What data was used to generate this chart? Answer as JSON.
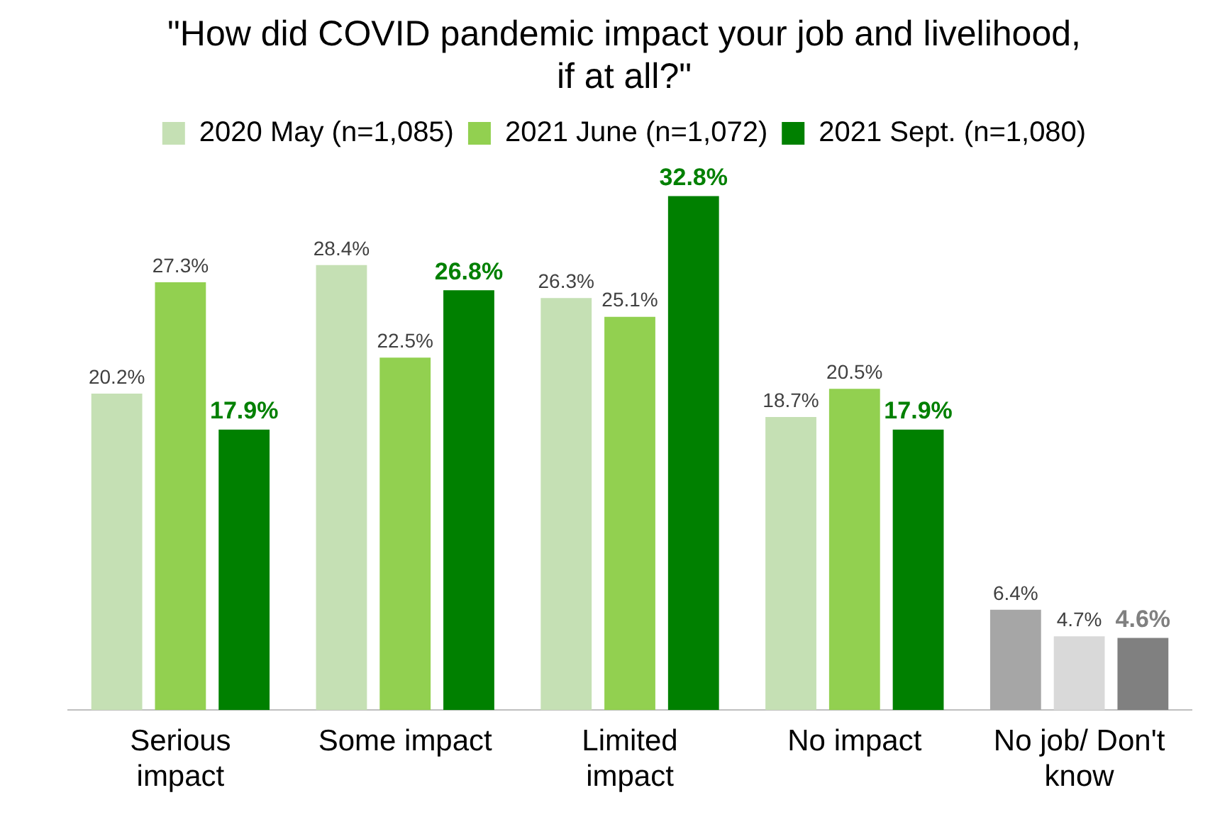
{
  "chart_data": {
    "type": "bar",
    "title": "\"How did COVID pandemic impact your job and livelihood, if at all?\"",
    "categories": [
      "Serious impact",
      "Some impact",
      "Limited impact",
      "No impact",
      "No job/ Don't know"
    ],
    "series": [
      {
        "name": "2020 May (n=1,085)",
        "colors": [
          "#c5e0b4",
          "#c5e0b4",
          "#c5e0b4",
          "#c5e0b4",
          "#a6a6a6"
        ],
        "values": [
          20.2,
          28.4,
          26.3,
          18.7,
          6.4
        ],
        "value_labels": [
          "20.2%",
          "28.4%",
          "26.3%",
          "18.7%",
          "6.4%"
        ]
      },
      {
        "name": "2021 June (n=1,072)",
        "colors": [
          "#92d050",
          "#92d050",
          "#92d050",
          "#92d050",
          "#d9d9d9"
        ],
        "values": [
          27.3,
          22.5,
          25.1,
          20.5,
          4.7
        ],
        "value_labels": [
          "27.3%",
          "22.5%",
          "25.1%",
          "20.5%",
          "4.7%"
        ]
      },
      {
        "name": "2021 Sept. (n=1,080)",
        "colors": [
          "#008000",
          "#008000",
          "#008000",
          "#008000",
          "#808080"
        ],
        "values": [
          17.9,
          26.8,
          32.8,
          17.9,
          4.6
        ],
        "value_labels": [
          "17.9%",
          "26.8%",
          "32.8%",
          "17.9%",
          "4.6%"
        ]
      }
    ],
    "tick_labels": "x",
    "legend": "top"
  }
}
